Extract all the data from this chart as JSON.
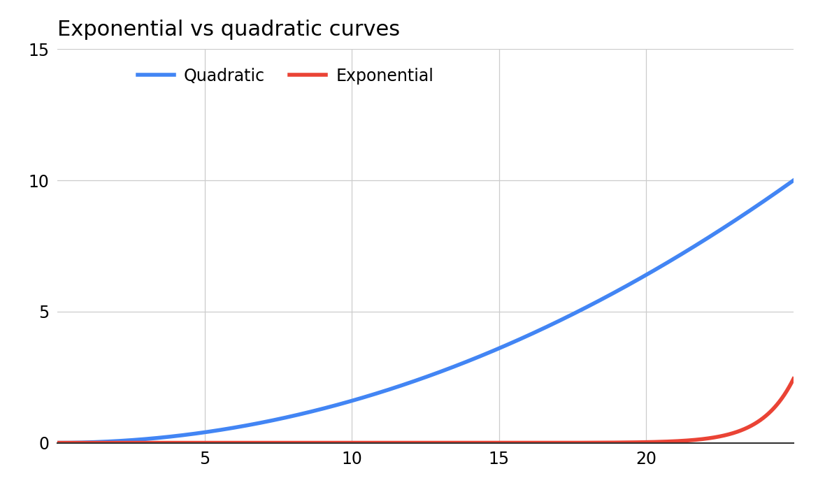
{
  "title": "Exponential vs quadratic curves",
  "title_fontsize": 22,
  "title_fontweight": "normal",
  "xlim": [
    0,
    25
  ],
  "ylim": [
    0,
    15
  ],
  "xticks": [
    5,
    10,
    15,
    20
  ],
  "yticks": [
    0,
    5,
    10,
    15
  ],
  "quadratic_color": "#4285f4",
  "exponential_color": "#ea4335",
  "line_width": 4.0,
  "legend_labels": [
    "Quadratic",
    "Exponential"
  ],
  "background_color": "#ffffff",
  "grid_color": "#cccccc",
  "tick_label_fontsize": 17,
  "legend_fontsize": 17,
  "quad_coeff": 0.016,
  "exp_coeff": 2.5e-10,
  "exp_rate": 0.92
}
